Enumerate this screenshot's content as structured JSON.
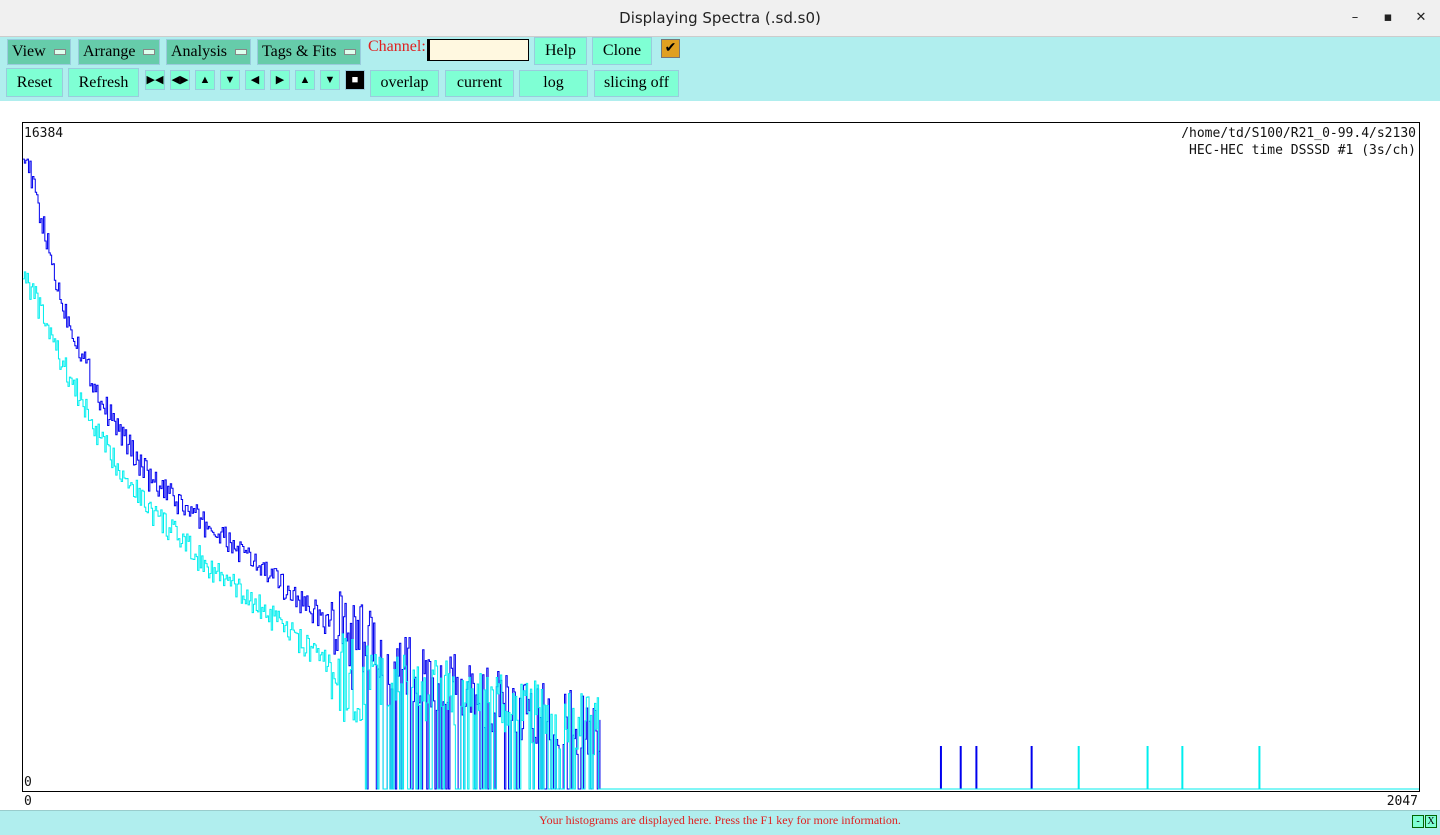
{
  "window": {
    "title": "Displaying Spectra (.sd.s0)",
    "minimize": "–",
    "maximize": "▪",
    "close": "✕"
  },
  "menus": [
    "View",
    "Arrange",
    "Analysis",
    "Tags & Fits"
  ],
  "channel": {
    "label": "Channel:",
    "value": ""
  },
  "buttons": {
    "help": "Help",
    "clone": "Clone",
    "reset": "Reset",
    "refresh": "Refresh",
    "overlap": "overlap",
    "current": "current",
    "log": "log",
    "slicing": "slicing off"
  },
  "nav_icons": [
    "expand-horizontal-icon",
    "shrink-horizontal-icon",
    "expand-vertical-icon",
    "shrink-vertical-icon",
    "left-icon",
    "right-icon",
    "up-icon",
    "down-icon",
    "stop-icon"
  ],
  "checkbox": {
    "checked": true
  },
  "plot": {
    "y_max_label": "16384",
    "y_min_label": "0",
    "x_min_label": "0",
    "x_max_label": "2047",
    "path": "/home/td/S100/R21_0-99.4/s2130",
    "spectrum_title": "HEC-HEC time DSSSD #1 (3s/ch)"
  },
  "status": {
    "message": "Your histograms are displayed here. Press the F1 key for more information.",
    "min": "-",
    "close": "X"
  },
  "chart_data": {
    "type": "line",
    "yscale": "log",
    "xlim": [
      0,
      2047
    ],
    "ylim": [
      0,
      16384
    ],
    "series": [
      {
        "color": "#0000ee",
        "x": [
          0,
          56,
          114,
          187,
          261,
          334,
          407,
          480,
          553,
          626,
          700,
          846
        ],
        "y": [
          11500,
          1000,
          215,
          62,
          33,
          18,
          9.6,
          5,
          2.7,
          2,
          1.5,
          1
        ],
        "sparse_x": [
          1346,
          1375,
          1398,
          1479
        ],
        "sparse_y": [
          1,
          1,
          1,
          1
        ]
      },
      {
        "color": "#00eeee",
        "x": [
          0,
          56,
          114,
          187,
          261,
          334,
          407,
          480,
          553,
          700,
          846
        ],
        "y": [
          1650,
          400,
          115,
          39,
          18,
          9.6,
          5,
          2.7,
          2,
          1.5,
          1
        ],
        "sparse_x": [
          1548,
          1649,
          1700,
          1813
        ],
        "sparse_y": [
          1,
          1,
          1,
          1
        ]
      }
    ]
  }
}
